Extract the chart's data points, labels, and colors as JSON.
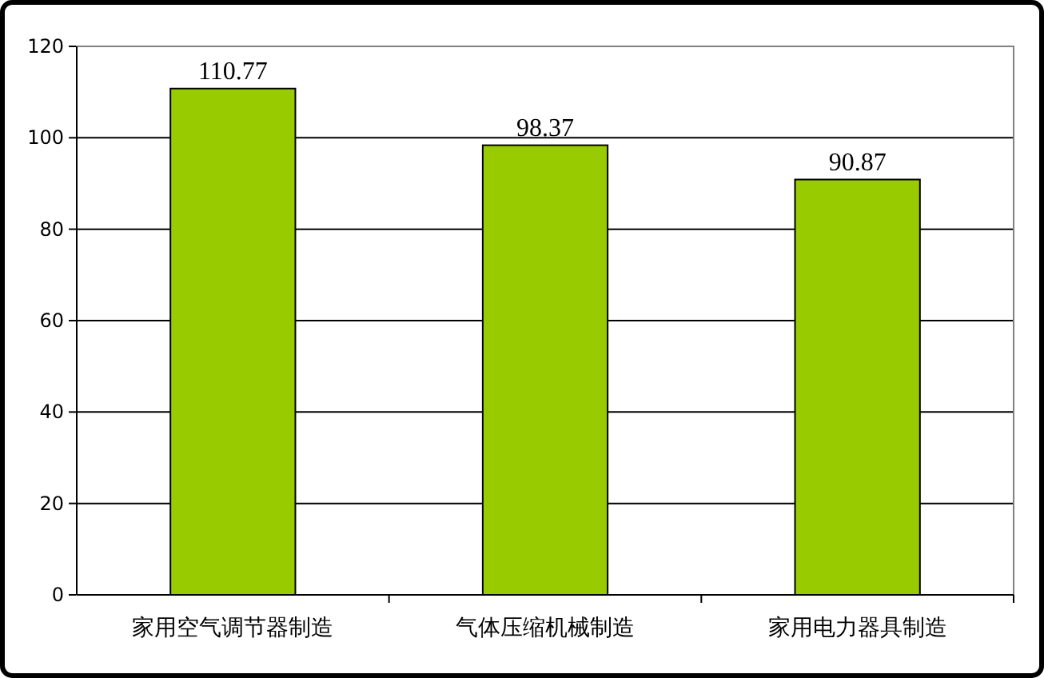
{
  "chart_data": {
    "type": "bar",
    "categories": [
      "家用空气调节器制造",
      "气体压缩机械制造",
      "家用电力器具制造"
    ],
    "values": [
      110.77,
      98.37,
      90.87
    ],
    "color": "#99cc00",
    "ylim": [
      0,
      120
    ],
    "yticks": [
      0,
      20,
      40,
      60,
      80,
      100,
      120
    ],
    "grid": "y",
    "data_labels": true
  }
}
